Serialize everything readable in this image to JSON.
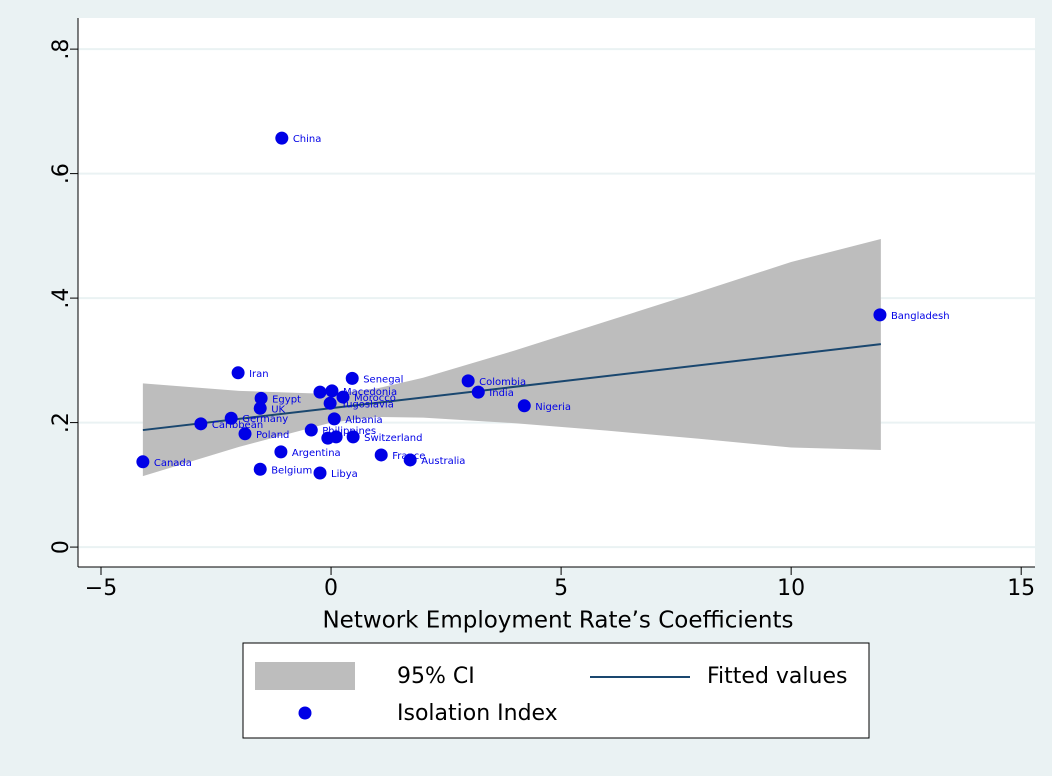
{
  "chart_data": {
    "type": "scatter",
    "x_label": "Network Employment Rate’s Coefficients",
    "xlim": [
      -5.5,
      15.3
    ],
    "ylim": [
      -0.032,
      0.85
    ],
    "xticks": [
      {
        "value": -5,
        "label": "−5"
      },
      0,
      5,
      10,
      15
    ],
    "yticks": [
      0,
      {
        "value": 0.2,
        "label": ".2"
      },
      {
        "value": 0.4,
        "label": ".4"
      },
      {
        "value": 0.6,
        "label": ".6"
      },
      {
        "value": 0.8,
        "label": ".8"
      }
    ],
    "grid": true,
    "ci": {
      "name": "95% CI",
      "color": "#bdbdbd",
      "x": [
        -4.09,
        -2,
        0,
        1,
        2,
        4,
        6,
        8,
        10,
        11.95
      ],
      "lower": [
        0.114,
        0.161,
        0.2,
        0.209,
        0.208,
        0.199,
        0.187,
        0.174,
        0.16,
        0.156
      ],
      "upper": [
        0.263,
        0.251,
        0.246,
        0.255,
        0.272,
        0.316,
        0.363,
        0.41,
        0.458,
        0.495
      ]
    },
    "fit": {
      "name": "Fitted values",
      "color": "#1a476f",
      "x": [
        -4.09,
        11.95
      ],
      "values": [
        0.188,
        0.326
      ]
    },
    "series": [
      {
        "name": "Isolation Index",
        "color": "#0000e6",
        "x": [
          -1.07,
          11.93,
          -2.02,
          0.46,
          2.98,
          3.2,
          0.02,
          -0.24,
          0.26,
          -0.02,
          4.2,
          -1.52,
          -1.54,
          -2.17,
          -2.83,
          -1.87,
          0.07,
          -0.43,
          -0.07,
          0.11,
          0.48,
          -1.09,
          1.09,
          1.72,
          -4.09,
          -1.54,
          -0.24
        ],
        "values": [
          0.657,
          0.373,
          0.28,
          0.271,
          0.267,
          0.249,
          0.251,
          0.249,
          0.241,
          0.231,
          0.227,
          0.239,
          0.223,
          0.207,
          0.198,
          0.182,
          0.206,
          0.188,
          0.175,
          0.177,
          0.177,
          0.153,
          0.148,
          0.14,
          0.137,
          0.125,
          0.119
        ],
        "labels": [
          "China",
          "Bangladesh",
          "Iran",
          "Senegal",
          "Colombia",
          "India",
          "Macedonia",
          null,
          "Morocco",
          "Yugoslavia",
          "Nigeria",
          "Egypt",
          "UK",
          "Germany",
          "Caribbean",
          "Poland",
          "Albania",
          "Philippines",
          null,
          null,
          "Switzerland",
          "Argentina",
          "France",
          "Australia",
          "Canada",
          "Belgium",
          "Libya"
        ]
      }
    ]
  }
}
